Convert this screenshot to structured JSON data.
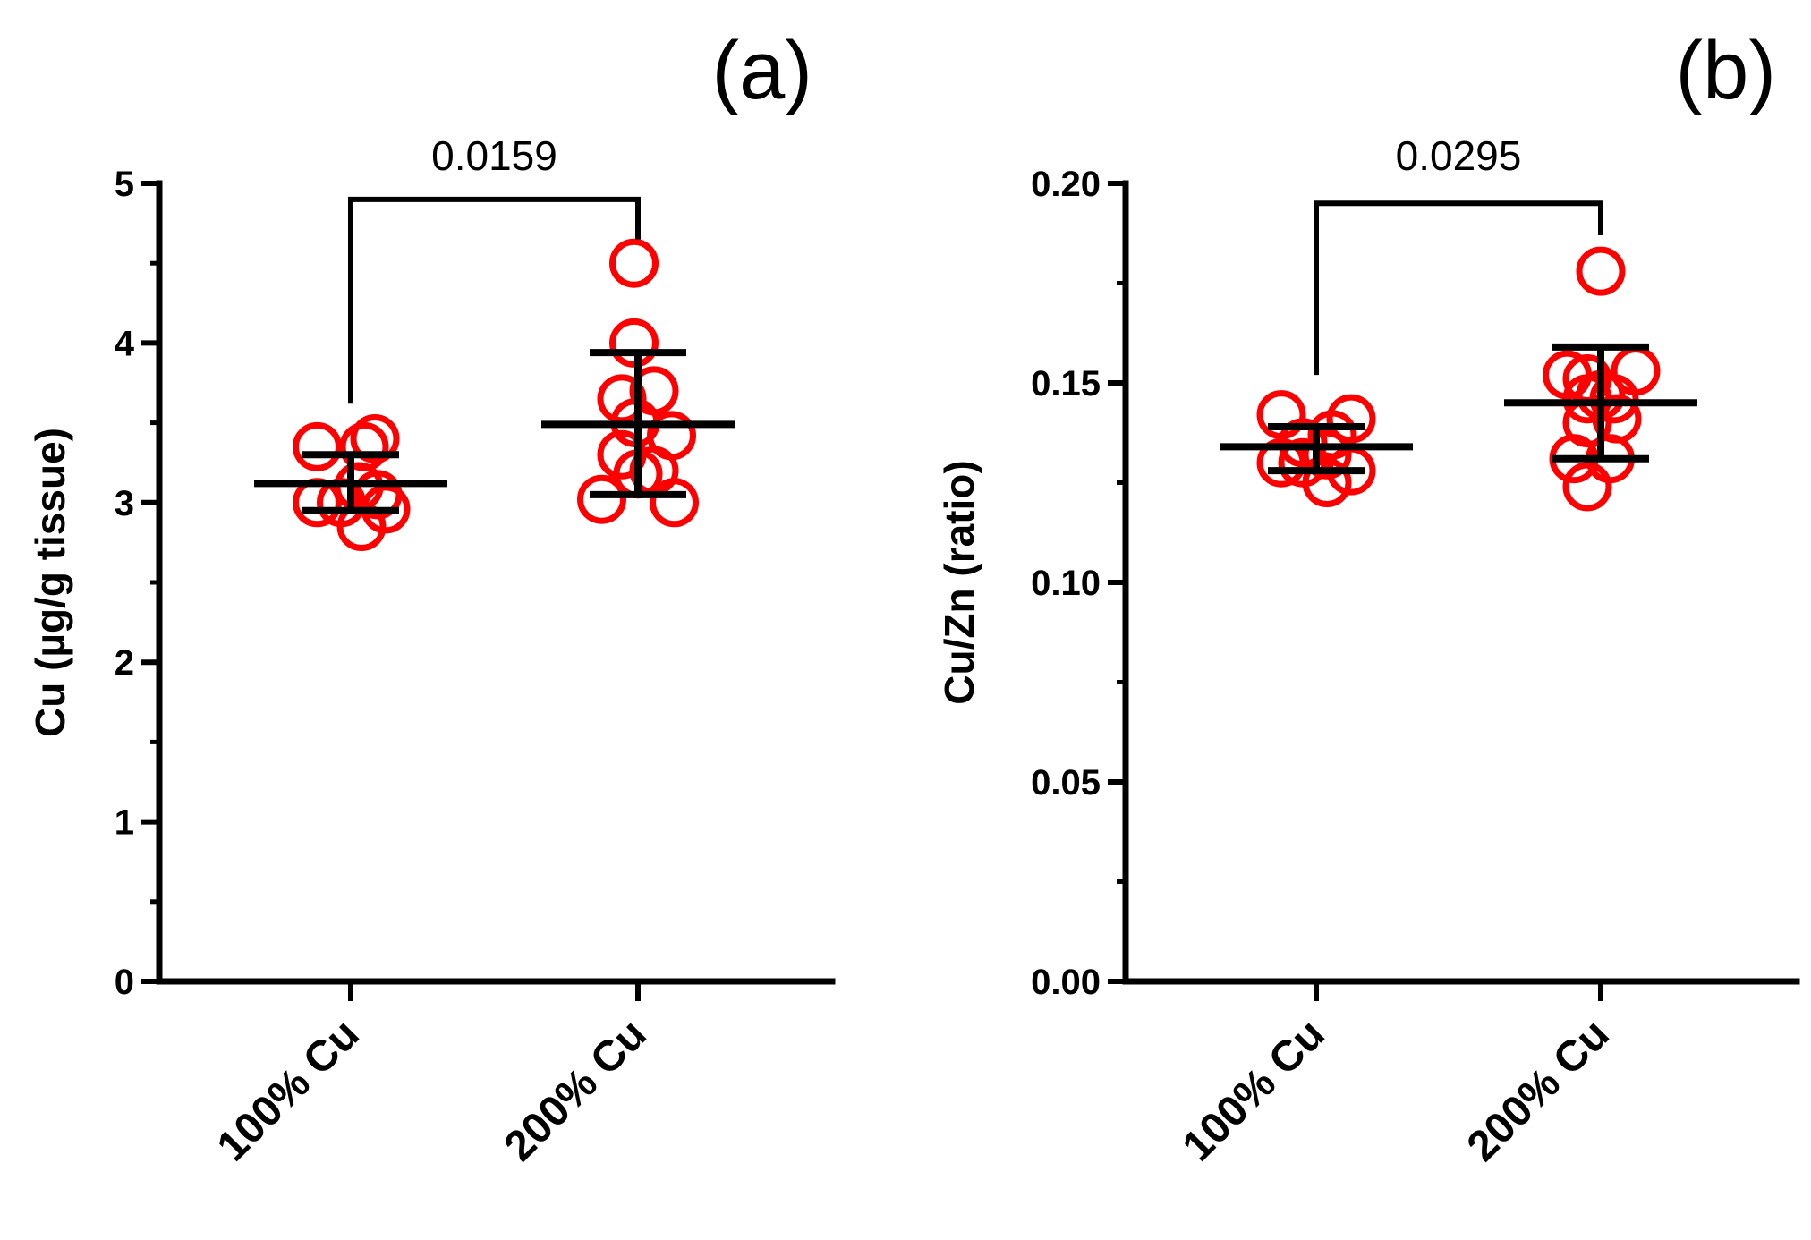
{
  "colors": {
    "points": "#ff0000",
    "axes": "#000000",
    "background": "#ffffff"
  },
  "chart_data": [
    {
      "type": "scatter",
      "panel_label": "(a)",
      "ylabel": "Cu (µg/g tissue)",
      "ylim": [
        0,
        5
      ],
      "yticks": [
        0,
        1,
        2,
        3,
        4,
        5
      ],
      "ytick_labels": [
        "0",
        "1",
        "2",
        "3",
        "4",
        "5"
      ],
      "minor_per_major": 1,
      "categories": [
        "100% Cu",
        "200% Cu"
      ],
      "series": [
        {
          "name": "100% Cu",
          "points": [
            [
              -0.25,
              3.35
            ],
            [
              -0.25,
              3.0
            ],
            [
              -0.07,
              3.0
            ],
            [
              0.18,
              3.4
            ],
            [
              0.1,
              3.35
            ],
            [
              0.06,
              3.1
            ],
            [
              0.2,
              3.05
            ],
            [
              0.26,
              2.96
            ],
            [
              0.08,
              2.85
            ]
          ],
          "mean": 3.12,
          "err_low": 2.95,
          "err_high": 3.3
        },
        {
          "name": "200% Cu",
          "points": [
            [
              -0.03,
              4.5
            ],
            [
              -0.03,
              4.0
            ],
            [
              -0.12,
              3.65
            ],
            [
              0.12,
              3.7
            ],
            [
              -0.02,
              3.5
            ],
            [
              0.25,
              3.42
            ],
            [
              -0.12,
              3.3
            ],
            [
              0.12,
              3.2
            ],
            [
              0.0,
              3.18
            ],
            [
              -0.27,
              3.02
            ],
            [
              0.27,
              3.0
            ]
          ],
          "mean": 3.49,
          "err_low": 3.05,
          "err_high": 3.94
        }
      ],
      "comparison": {
        "label": "0.0159",
        "bracket_y": 4.9,
        "left_end": 3.62,
        "right_end": 4.65
      }
    },
    {
      "type": "scatter",
      "panel_label": "(b)",
      "ylabel": "Cu/Zn (ratio)",
      "ylim": [
        0,
        0.2
      ],
      "yticks": [
        0,
        0.05,
        0.1,
        0.15,
        0.2
      ],
      "ytick_labels": [
        "0.00",
        "0.05",
        "0.10",
        "0.15",
        "0.20"
      ],
      "minor_per_major": 1,
      "categories": [
        "100% Cu",
        "200% Cu"
      ],
      "series": [
        {
          "name": "100% Cu",
          "points": [
            [
              -0.26,
              0.142
            ],
            [
              -0.26,
              0.13
            ],
            [
              -0.1,
              0.135
            ],
            [
              -0.1,
              0.13
            ],
            [
              0.08,
              0.132
            ],
            [
              0.12,
              0.137
            ],
            [
              0.26,
              0.141
            ],
            [
              0.26,
              0.128
            ],
            [
              0.08,
              0.125
            ]
          ],
          "mean": 0.134,
          "err_low": 0.128,
          "err_high": 0.139
        },
        {
          "name": "200% Cu",
          "points": [
            [
              0.0,
              0.178
            ],
            [
              -0.25,
              0.152
            ],
            [
              -0.1,
              0.151
            ],
            [
              0.26,
              0.153
            ],
            [
              -0.1,
              0.146
            ],
            [
              0.0,
              0.147
            ],
            [
              0.1,
              0.146
            ],
            [
              0.12,
              0.141
            ],
            [
              -0.1,
              0.14
            ],
            [
              0.07,
              0.131
            ],
            [
              -0.2,
              0.131
            ],
            [
              -0.1,
              0.124
            ]
          ],
          "mean": 0.145,
          "err_low": 0.131,
          "err_high": 0.159
        }
      ],
      "comparison": {
        "label": "0.0295",
        "bracket_y": 0.195,
        "left_end": 0.152,
        "right_end": 0.187
      }
    }
  ]
}
